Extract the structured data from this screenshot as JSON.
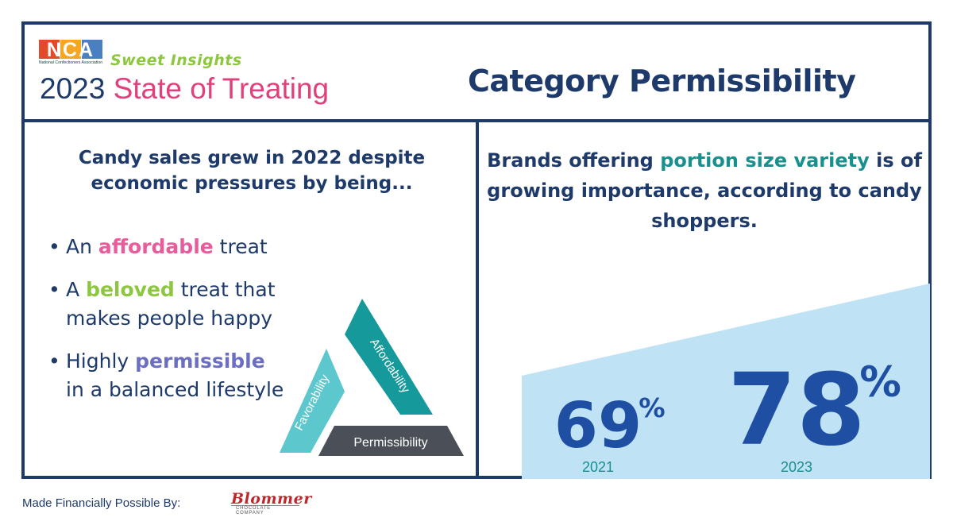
{
  "header": {
    "logo_text": "NCA",
    "logo_subtext": "National Confectioners Association",
    "series_name": "Sweet Insights",
    "year": "2023",
    "report_title": "State of Treating",
    "category_title": "Category Permissibility"
  },
  "left_panel": {
    "headline_line1": "Candy sales grew in 2022 despite",
    "headline_line2": "economic pressures by being...",
    "bullets": [
      {
        "pre": "An ",
        "highlight": "affordable",
        "post": " treat"
      },
      {
        "pre": "A ",
        "highlight": "beloved",
        "post": " treat that makes people happy"
      },
      {
        "pre": "Highly ",
        "highlight": "permissible",
        "post": " in a balanced lifestyle"
      }
    ],
    "triangle_labels": {
      "left": "Favorability",
      "right": "Affordability",
      "bottom": "Permissibility"
    }
  },
  "right_panel": {
    "headline_pre": "Brands offering ",
    "headline_highlight": "portion size variety",
    "headline_post": "is of growing importance, according to candy shoppers."
  },
  "footer": {
    "made_possible": "Made Financially Possible By:",
    "sponsor_name": "Blommer",
    "sponsor_sub": "CHOCOLATE COMPANY"
  },
  "colors": {
    "navy": "#1d3a6b",
    "pink": "#e0407b",
    "green": "#8dc63f",
    "teal": "#17908e",
    "purple": "#6c6fc0",
    "wedge": "#bfe3f5",
    "number_blue": "#1f4fa3"
  },
  "chart_data": {
    "type": "area",
    "categories": [
      "2021",
      "2023"
    ],
    "values": [
      69,
      78
    ],
    "value_labels": [
      "69",
      "78"
    ],
    "unit": "%",
    "ylim": [
      0,
      100
    ]
  }
}
